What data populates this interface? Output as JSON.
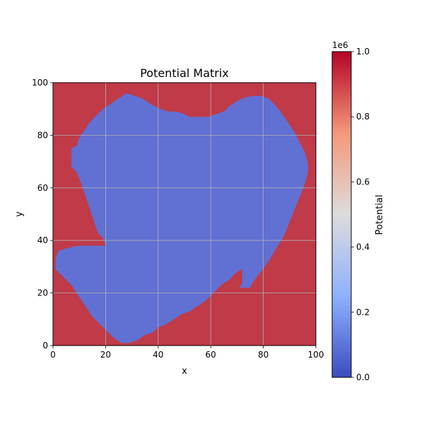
{
  "chart_data": {
    "type": "heatmap",
    "title": "Potential Matrix",
    "xlabel": "x",
    "ylabel": "y",
    "xlim": [
      0,
      100
    ],
    "ylim": [
      0,
      100
    ],
    "xticks": [
      "0",
      "20",
      "40",
      "60",
      "80",
      "100"
    ],
    "yticks": [
      "0",
      "20",
      "40",
      "60",
      "80",
      "100"
    ],
    "grid": true,
    "colormap": "coolwarm",
    "colorbar": {
      "label": "Potential",
      "range": [
        0,
        1000000
      ],
      "offset_label": "1e6",
      "ticks": [
        "0.0",
        "0.2",
        "0.4",
        "0.6",
        "0.8",
        "1.0"
      ]
    },
    "background_value": 1000000,
    "region_value": 0,
    "region_outline": [
      [
        26,
        1
      ],
      [
        29,
        1
      ],
      [
        32,
        2
      ],
      [
        35,
        4
      ],
      [
        38,
        5
      ],
      [
        40,
        7
      ],
      [
        43,
        8
      ],
      [
        46,
        10
      ],
      [
        49,
        12
      ],
      [
        52,
        13
      ],
      [
        55,
        15
      ],
      [
        58,
        17
      ],
      [
        61,
        20
      ],
      [
        64,
        23
      ],
      [
        67,
        25
      ],
      [
        70,
        28
      ],
      [
        72,
        29
      ],
      [
        72,
        24
      ],
      [
        71,
        22
      ],
      [
        75,
        22
      ],
      [
        76,
        24
      ],
      [
        79,
        28
      ],
      [
        82,
        32
      ],
      [
        85,
        37
      ],
      [
        88,
        42
      ],
      [
        90,
        47
      ],
      [
        92,
        52
      ],
      [
        94,
        57
      ],
      [
        96,
        62
      ],
      [
        97,
        66
      ],
      [
        97,
        69
      ],
      [
        96,
        73
      ],
      [
        94,
        77
      ],
      [
        92,
        81
      ],
      [
        90,
        84
      ],
      [
        88,
        87
      ],
      [
        85,
        91
      ],
      [
        82,
        94
      ],
      [
        79,
        95
      ],
      [
        76,
        95
      ],
      [
        72,
        94
      ],
      [
        70,
        93
      ],
      [
        67,
        91
      ],
      [
        65,
        89
      ],
      [
        62,
        88
      ],
      [
        59,
        87
      ],
      [
        52,
        87
      ],
      [
        50,
        88
      ],
      [
        47,
        89
      ],
      [
        44,
        89
      ],
      [
        41,
        90
      ],
      [
        37,
        92
      ],
      [
        34,
        94
      ],
      [
        31,
        95
      ],
      [
        28,
        96
      ],
      [
        25,
        94
      ],
      [
        22,
        92
      ],
      [
        19,
        90
      ],
      [
        16,
        87
      ],
      [
        14,
        85
      ],
      [
        12,
        82
      ],
      [
        10,
        79
      ],
      [
        9,
        76
      ],
      [
        7,
        75
      ],
      [
        7,
        68
      ],
      [
        9,
        66
      ],
      [
        11,
        61
      ],
      [
        13,
        55
      ],
      [
        15,
        49
      ],
      [
        17,
        43
      ],
      [
        19,
        41
      ],
      [
        20,
        38
      ],
      [
        10,
        38
      ],
      [
        5,
        37
      ],
      [
        2,
        36
      ],
      [
        1,
        33
      ],
      [
        1,
        29
      ],
      [
        3,
        27
      ],
      [
        5,
        25
      ],
      [
        7,
        23
      ],
      [
        9,
        20
      ],
      [
        11,
        17
      ],
      [
        13,
        14
      ],
      [
        15,
        11
      ],
      [
        17,
        9
      ],
      [
        19,
        7
      ],
      [
        21,
        5
      ],
      [
        23,
        3
      ]
    ],
    "colors": {
      "background": "#c03a48",
      "region": "#6170d3",
      "cbar_stops": [
        "#3b4cc0",
        "#8fb1fe",
        "#dddcdc",
        "#f4987a",
        "#b40426"
      ]
    }
  }
}
